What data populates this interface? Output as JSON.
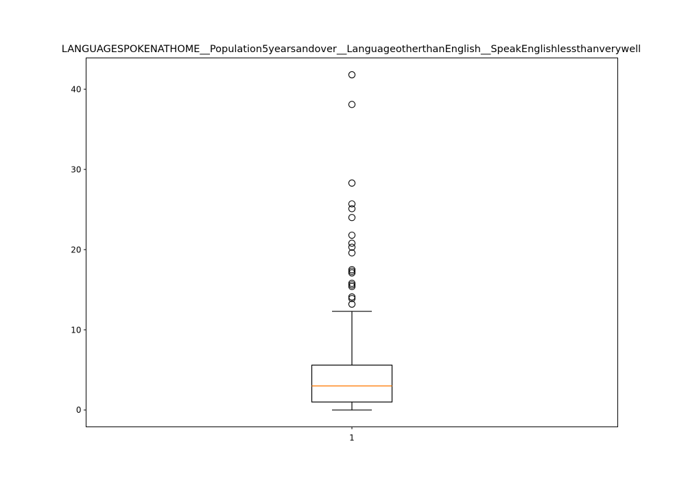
{
  "chart_data": {
    "type": "boxplot",
    "title": "LANGUAGESPOKENATHOME__Population5yearsandover__LanguageotherthanEnglish__SpeakEnglishlessthanverywell",
    "xlabel": "",
    "ylabel": "",
    "categories": [
      "1"
    ],
    "ylim": [
      -2.1,
      43.9
    ],
    "yticks": [
      0,
      10,
      20,
      30,
      40
    ],
    "grid": false,
    "legend": "none",
    "boxes": [
      {
        "category": "1",
        "whisker_low": 0.0,
        "q1": 1.0,
        "median": 3.0,
        "q3": 5.6,
        "whisker_high": 12.3,
        "outliers": [
          13.2,
          13.9,
          14.1,
          15.4,
          15.6,
          15.8,
          17.1,
          17.3,
          17.5,
          19.6,
          20.3,
          20.8,
          21.8,
          24.0,
          25.1,
          25.7,
          28.3,
          38.1,
          41.8
        ]
      }
    ],
    "colors": {
      "median": "#ff7f0e",
      "box": "#000000",
      "flier": "#000000",
      "background": "#ffffff"
    }
  }
}
